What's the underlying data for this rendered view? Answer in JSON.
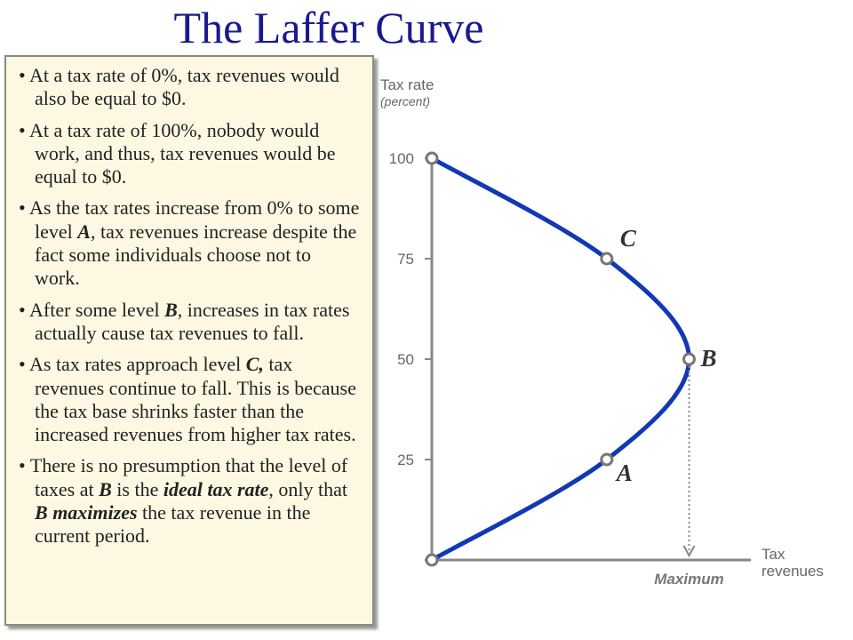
{
  "slide": {
    "title": "The Laffer Curve",
    "bullets": [
      [
        "At a tax rate of 0%, tax revenues would also be equal to $0."
      ],
      [
        "At a tax rate of 100%, nobody would work, and thus, tax revenues would be equal to $0."
      ],
      [
        "As the tax rates increase from 0% to some level ",
        {
          "text": "A",
          "emphasis": true
        },
        ", tax revenues increase despite the fact some individuals choose not to work."
      ],
      [
        "After some level ",
        {
          "text": "B",
          "emphasis": true
        },
        ", increases in tax rates actually cause tax revenues to fall."
      ],
      [
        "As tax rates approach level ",
        {
          "text": "C,",
          "emphasis": true
        },
        " tax revenues continue to fall.  This is because the tax base shrinks faster than the increased revenues from higher tax rates."
      ],
      [
        "There is no presumption that the level of taxes at ",
        {
          "text": "B",
          "emphasis": true
        },
        " is the ",
        {
          "text": "ideal tax rate",
          "emphasis": true
        },
        ", only that ",
        {
          "text": "B",
          "emphasis": true
        },
        " ",
        {
          "text": "maximizes",
          "emphasis": true
        },
        " the tax revenue in the current period."
      ]
    ]
  },
  "chart_data": {
    "type": "line",
    "y_label": "Tax rate",
    "y_sublabel": "(percent)",
    "x_label": "Tax revenues",
    "x": [
      0,
      68,
      100,
      68,
      0
    ],
    "values": [
      0,
      25,
      50,
      75,
      100
    ],
    "point_labels": [
      null,
      "A",
      "B",
      "C",
      null
    ],
    "color": "#1238b5",
    "xlim": [
      0,
      124
    ],
    "ylim": [
      0,
      100
    ],
    "yticks": [
      25,
      50,
      75,
      100
    ],
    "annotation": "Maximum"
  }
}
